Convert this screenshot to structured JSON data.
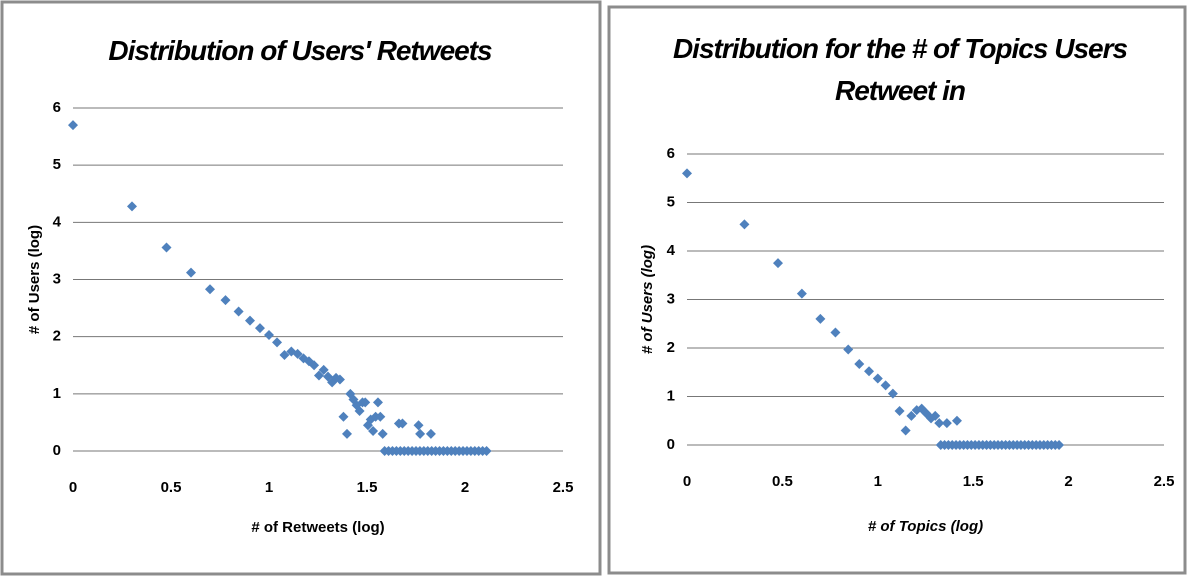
{
  "chart_data": [
    {
      "type": "scatter",
      "title": "Distribution of Users' Retweets",
      "x_label": "# of Retweets (log)",
      "y_label": "# of Users (log)",
      "color": "#4f81bd",
      "grid": true,
      "xlim": [
        0,
        2.5
      ],
      "xticks": [
        0,
        0.5,
        1,
        1.5,
        2,
        2.5
      ],
      "ylim": [
        0,
        6
      ],
      "yticks": [
        0,
        1,
        2,
        3,
        4,
        5,
        6
      ],
      "x": [
        0,
        0.301,
        0.477,
        0.602,
        0.699,
        0.778,
        0.845,
        0.903,
        0.954,
        1,
        1.041,
        1.079,
        1.114,
        1.146,
        1.176,
        1.204,
        1.23,
        1.255,
        1.279,
        1.301,
        1.322,
        1.342,
        1.362,
        1.38,
        1.398,
        1.415,
        1.431,
        1.447,
        1.462,
        1.477,
        1.491,
        1.505,
        1.519,
        1.531,
        1.544,
        1.556,
        1.568,
        1.58,
        1.663,
        1.681,
        1.763,
        1.771,
        1.826,
        1.59,
        1.61,
        1.63,
        1.65,
        1.67,
        1.69,
        1.71,
        1.73,
        1.75,
        1.77,
        1.79,
        1.81,
        1.83,
        1.85,
        1.87,
        1.89,
        1.91,
        1.93,
        1.95,
        1.97,
        1.99,
        2.01,
        2.03,
        2.05,
        2.07,
        2.09,
        2.11
      ],
      "values": [
        5.7,
        4.28,
        3.56,
        3.12,
        2.83,
        2.64,
        2.44,
        2.28,
        2.15,
        2.03,
        1.9,
        1.68,
        1.74,
        1.7,
        1.62,
        1.57,
        1.5,
        1.32,
        1.42,
        1.3,
        1.2,
        1.28,
        1.25,
        0.6,
        0.3,
        1.0,
        0.9,
        0.8,
        0.7,
        0.85,
        0.85,
        0.45,
        0.55,
        0.35,
        0.6,
        0.85,
        0.6,
        0.3,
        0.48,
        0.48,
        0.45,
        0.3,
        0.3,
        0,
        0,
        0,
        0,
        0,
        0,
        0,
        0,
        0,
        0,
        0,
        0,
        0,
        0,
        0,
        0,
        0,
        0,
        0,
        0,
        0,
        0,
        0,
        0,
        0,
        0,
        0
      ]
    },
    {
      "type": "scatter",
      "title": "Distribution for the # of Topics Users Retweet in",
      "x_label": "# of Topics (log)",
      "y_label": "# of Users (log)",
      "color": "#4f81bd",
      "grid": true,
      "xlim": [
        0,
        2.5
      ],
      "xticks": [
        0,
        0.5,
        1,
        1.5,
        2,
        2.5
      ],
      "ylim": [
        0,
        6
      ],
      "yticks": [
        0,
        1,
        2,
        3,
        4,
        5,
        6
      ],
      "x": [
        0,
        0.301,
        0.477,
        0.602,
        0.699,
        0.778,
        0.845,
        0.903,
        0.954,
        1,
        1.041,
        1.079,
        1.114,
        1.146,
        1.176,
        1.204,
        1.23,
        1.255,
        1.279,
        1.301,
        1.322,
        1.362,
        1.415,
        1.33,
        1.35,
        1.37,
        1.39,
        1.41,
        1.43,
        1.45,
        1.47,
        1.49,
        1.51,
        1.53,
        1.55,
        1.57,
        1.59,
        1.61,
        1.63,
        1.65,
        1.67,
        1.69,
        1.71,
        1.73,
        1.75,
        1.77,
        1.79,
        1.81,
        1.83,
        1.85,
        1.87,
        1.89,
        1.91,
        1.93,
        1.95
      ],
      "values": [
        5.6,
        4.55,
        3.75,
        3.12,
        2.6,
        2.32,
        1.97,
        1.67,
        1.52,
        1.37,
        1.23,
        1.06,
        0.7,
        0.3,
        0.6,
        0.72,
        0.75,
        0.65,
        0.55,
        0.6,
        0.45,
        0.45,
        0.5,
        0,
        0,
        0,
        0,
        0,
        0,
        0,
        0,
        0,
        0,
        0,
        0,
        0,
        0,
        0,
        0,
        0,
        0,
        0,
        0,
        0,
        0,
        0,
        0,
        0,
        0,
        0,
        0,
        0,
        0,
        0,
        0
      ]
    }
  ]
}
